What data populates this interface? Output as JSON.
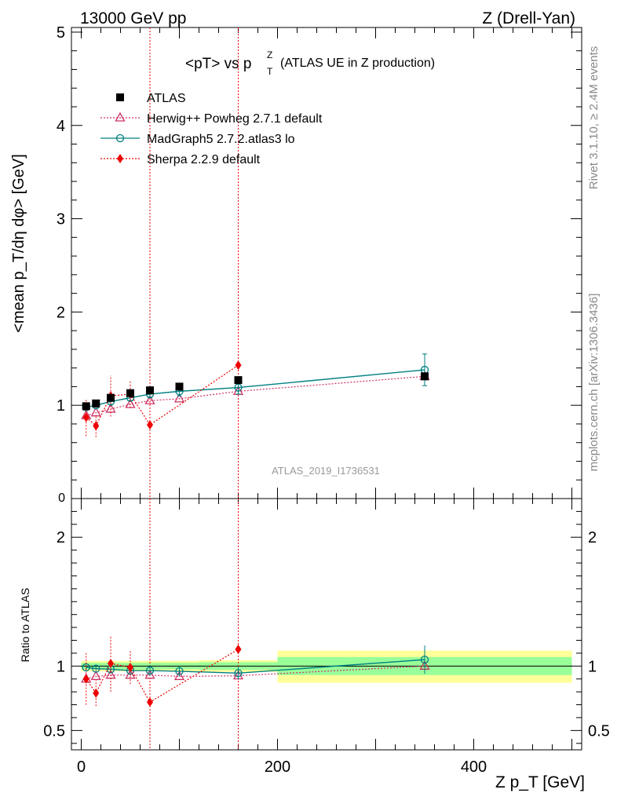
{
  "header": {
    "left": "13000 GeV pp",
    "right": "Z (Drell-Yan)"
  },
  "side_labels": {
    "rivet": "Rivet 3.1.10, ≥ 2.4M events",
    "mcplots": "mcplots.cern.ch [arXiv:1306.3436]"
  },
  "colors": {
    "atlas": "#000000",
    "herwig": "#cc3366",
    "madgraph": "#008080",
    "sherpa": "#ee0000",
    "band_inner": "#99ff99",
    "band_outer": "#ffff99"
  },
  "chart_data": [
    {
      "type": "scatter",
      "title_main": "<pT> vs p",
      "title_sup": "Z",
      "title_sub": "T",
      "title_suffix": "(ATLAS UE in Z production)",
      "ylabel": "<mean p_T/dη dφ> [GeV]",
      "watermark": "ATLAS_2019_I1736531",
      "xlim": [
        -10,
        510
      ],
      "ylim": [
        0,
        5.05
      ],
      "yticks": [
        "1",
        "2",
        "3",
        "4",
        "5"
      ],
      "y_bottom_label": "0",
      "legend_position": "top-left",
      "series": [
        {
          "name": "ATLAS",
          "marker": "square",
          "x": [
            5,
            15,
            30,
            50,
            70,
            100,
            160,
            350
          ],
          "y": [
            0.99,
            1.02,
            1.08,
            1.13,
            1.16,
            1.2,
            1.27,
            1.31
          ]
        },
        {
          "name": "Herwig++ Powheg 2.7.1 default",
          "marker": "triangle",
          "x": [
            5,
            15,
            30,
            50,
            70,
            100,
            160,
            350
          ],
          "y": [
            0.89,
            0.92,
            0.96,
            1.01,
            1.05,
            1.07,
            1.15,
            1.31
          ]
        },
        {
          "name": "MadGraph5 2.7.2.atlas3 lo",
          "marker": "circle",
          "x": [
            5,
            15,
            30,
            50,
            70,
            100,
            160,
            350
          ],
          "y": [
            0.98,
            1.0,
            1.04,
            1.08,
            1.12,
            1.15,
            1.19,
            1.38
          ],
          "err": [
            0.02,
            0.02,
            0.03,
            0.03,
            0.04,
            0.05,
            0.07,
            0.17
          ]
        },
        {
          "name": "Sherpa 2.2.9 default",
          "marker": "diamond",
          "x": [
            5,
            15,
            30,
            50,
            70,
            160
          ],
          "y": [
            0.87,
            0.78,
            1.1,
            1.12,
            0.79,
            1.43
          ],
          "err": [
            0.2,
            0.12,
            0.22,
            0.15,
            0.0,
            0.0
          ]
        }
      ],
      "vlines_x": [
        70,
        160
      ]
    },
    {
      "type": "scatter",
      "ylabel": "Ratio to ATLAS",
      "xlabel": "Z p_T [GeV]",
      "xlim": [
        -10,
        510
      ],
      "ylim": [
        0.35,
        2.3
      ],
      "xticks": [
        "0",
        "200",
        "400"
      ],
      "yticks": [
        "0.5",
        "1",
        "2"
      ],
      "bands": [
        {
          "x_from": 0,
          "x_to": 120,
          "inner": [
            0.975,
            1.025
          ],
          "outer": [
            0.96,
            1.04
          ]
        },
        {
          "x_from": 120,
          "x_to": 200,
          "inner": [
            0.97,
            1.03
          ],
          "outer": [
            0.955,
            1.045
          ]
        },
        {
          "x_from": 200,
          "x_to": 500,
          "inner": [
            0.93,
            1.07
          ],
          "outer": [
            0.87,
            1.12
          ]
        }
      ],
      "series": [
        {
          "name": "Herwig++ Powheg 2.7.1 default",
          "marker": "triangle",
          "x": [
            5,
            15,
            30,
            50,
            70,
            100,
            160,
            350
          ],
          "y": [
            0.9,
            0.92,
            0.93,
            0.93,
            0.93,
            0.92,
            0.925,
            1.0
          ]
        },
        {
          "name": "MadGraph5 2.7.2.atlas3 lo",
          "marker": "circle",
          "x": [
            5,
            15,
            30,
            50,
            70,
            100,
            160,
            350
          ],
          "y": [
            0.99,
            0.98,
            0.975,
            0.965,
            0.965,
            0.96,
            0.945,
            1.05
          ],
          "err": [
            0.02,
            0.02,
            0.03,
            0.03,
            0.04,
            0.04,
            0.05,
            0.11
          ]
        },
        {
          "name": "Sherpa 2.2.9 default",
          "marker": "diamond",
          "x": [
            5,
            15,
            30,
            50,
            70,
            160
          ],
          "y": [
            0.9,
            0.79,
            1.02,
            0.99,
            0.72,
            1.13
          ],
          "err": [
            0.2,
            0.1,
            0.22,
            0.13,
            0.0,
            0.0
          ]
        }
      ],
      "vlines_x": [
        70,
        160
      ]
    }
  ]
}
